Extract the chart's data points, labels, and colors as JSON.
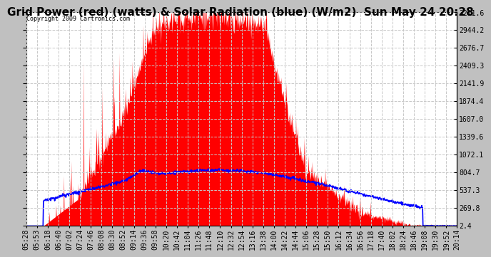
{
  "title": "Grid Power (red) (watts) & Solar Radiation (blue) (W/m2)  Sun May 24 20:28",
  "copyright_text": "Copyright 2009 Cartronics.com",
  "background_color": "#c0c0c0",
  "plot_bg_color": "#ffffff",
  "y_ticks": [
    2.4,
    269.8,
    537.3,
    804.7,
    1072.1,
    1339.6,
    1607.0,
    1874.4,
    2141.9,
    2409.3,
    2676.7,
    2944.2,
    3211.6
  ],
  "y_max": 3211.6,
  "y_min": 0,
  "x_labels": [
    "05:28",
    "05:53",
    "06:18",
    "06:40",
    "07:02",
    "07:24",
    "07:46",
    "08:08",
    "08:30",
    "08:52",
    "09:14",
    "09:36",
    "09:58",
    "10:20",
    "10:42",
    "11:04",
    "11:26",
    "11:48",
    "12:10",
    "12:32",
    "12:54",
    "13:16",
    "13:38",
    "14:00",
    "14:22",
    "14:44",
    "15:06",
    "15:28",
    "15:50",
    "16:12",
    "16:34",
    "16:56",
    "17:18",
    "17:40",
    "18:02",
    "18:24",
    "18:46",
    "19:08",
    "19:30",
    "19:52",
    "20:14"
  ],
  "red_color": "#ff0000",
  "blue_color": "#0000ff",
  "grid_color": "#c8c8c8",
  "title_fontsize": 11,
  "tick_fontsize": 7
}
